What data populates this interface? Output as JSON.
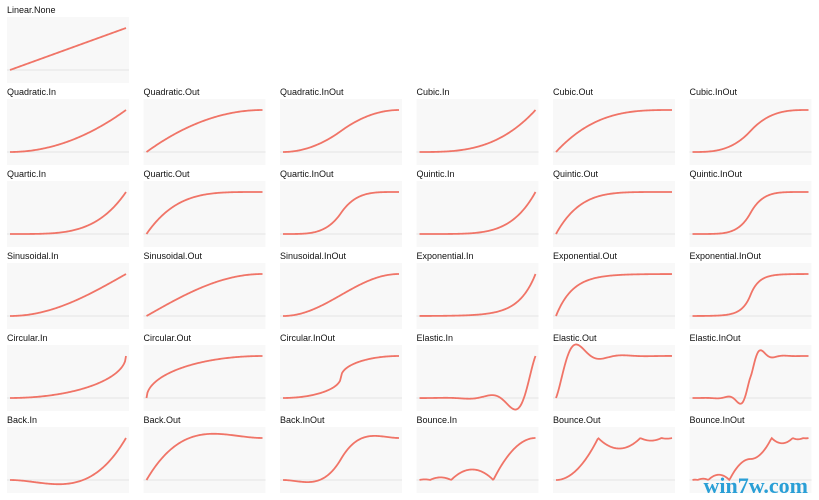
{
  "panels": [
    {
      "label": "Linear.None"
    },
    {
      "label": "Quadratic.In"
    },
    {
      "label": "Quadratic.Out"
    },
    {
      "label": "Quadratic.InOut"
    },
    {
      "label": "Cubic.In"
    },
    {
      "label": "Cubic.Out"
    },
    {
      "label": "Cubic.InOut"
    },
    {
      "label": "Quartic.In"
    },
    {
      "label": "Quartic.Out"
    },
    {
      "label": "Quartic.InOut"
    },
    {
      "label": "Quintic.In"
    },
    {
      "label": "Quintic.Out"
    },
    {
      "label": "Quintic.InOut"
    },
    {
      "label": "Sinusoidal.In"
    },
    {
      "label": "Sinusoidal.Out"
    },
    {
      "label": "Sinusoidal.InOut"
    },
    {
      "label": "Exponential.In"
    },
    {
      "label": "Exponential.Out"
    },
    {
      "label": "Exponential.InOut"
    },
    {
      "label": "Circular.In"
    },
    {
      "label": "Circular.Out"
    },
    {
      "label": "Circular.InOut"
    },
    {
      "label": "Elastic.In"
    },
    {
      "label": "Elastic.Out"
    },
    {
      "label": "Elastic.InOut"
    },
    {
      "label": "Back.In"
    },
    {
      "label": "Back.Out"
    },
    {
      "label": "Back.InOut"
    },
    {
      "label": "Bounce.In"
    },
    {
      "label": "Bounce.Out"
    },
    {
      "label": "Bounce.InOut"
    }
  ],
  "watermark": "win7w.com"
}
